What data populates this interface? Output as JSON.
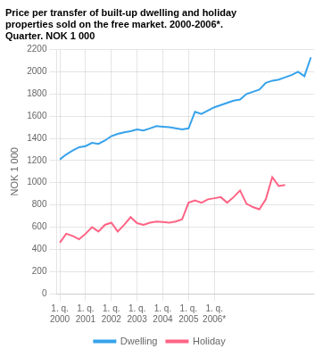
{
  "chart_data": {
    "type": "line",
    "title": "Price per transfer of built-up dwelling and holiday\nproperties sold on the free market. 2000-2006*.\nQuarter. NOK 1 000",
    "y_label": "NOK 1 000",
    "categories": [
      "1. q.\n2000",
      null,
      null,
      null,
      "1. q.\n2001",
      null,
      null,
      null,
      "1. q.\n2002",
      null,
      null,
      null,
      "1. q.\n2003",
      null,
      null,
      null,
      "1. q.\n2004",
      null,
      null,
      null,
      "1. q.\n2005",
      null,
      null,
      null,
      "1. q.\n2006*",
      null,
      null,
      null,
      null,
      null,
      null,
      null,
      null,
      null,
      null,
      null,
      null,
      null,
      null,
      null
    ],
    "series": [
      {
        "name": "Dwelling",
        "values": [
          1210,
          1255,
          1290,
          1320,
          1330,
          1360,
          1350,
          1380,
          1420,
          1440,
          1455,
          1465,
          1480,
          1470,
          1490,
          1510,
          1505,
          1500,
          1490,
          1480,
          1490,
          1640,
          1620,
          1650,
          1680,
          1700,
          1720,
          1740,
          1750,
          1800,
          1820,
          1840,
          1900,
          1920,
          1930,
          1950,
          1970,
          2000,
          1960,
          2130
        ]
      },
      {
        "name": "Holiday",
        "values": [
          460,
          540,
          520,
          490,
          540,
          600,
          560,
          620,
          640,
          560,
          620,
          690,
          635,
          620,
          640,
          650,
          645,
          640,
          650,
          670,
          820,
          840,
          820,
          850,
          860,
          870,
          820,
          870,
          930,
          810,
          780,
          760,
          850,
          1050,
          970,
          980,
          null,
          null,
          null,
          null
        ]
      }
    ],
    "ylim": [
      0,
      2200
    ],
    "yticks": [
      0,
      200,
      400,
      600,
      800,
      1000,
      1200,
      1400,
      1600,
      1800,
      2000,
      2200
    ],
    "grid": true,
    "legend": "bottom"
  }
}
